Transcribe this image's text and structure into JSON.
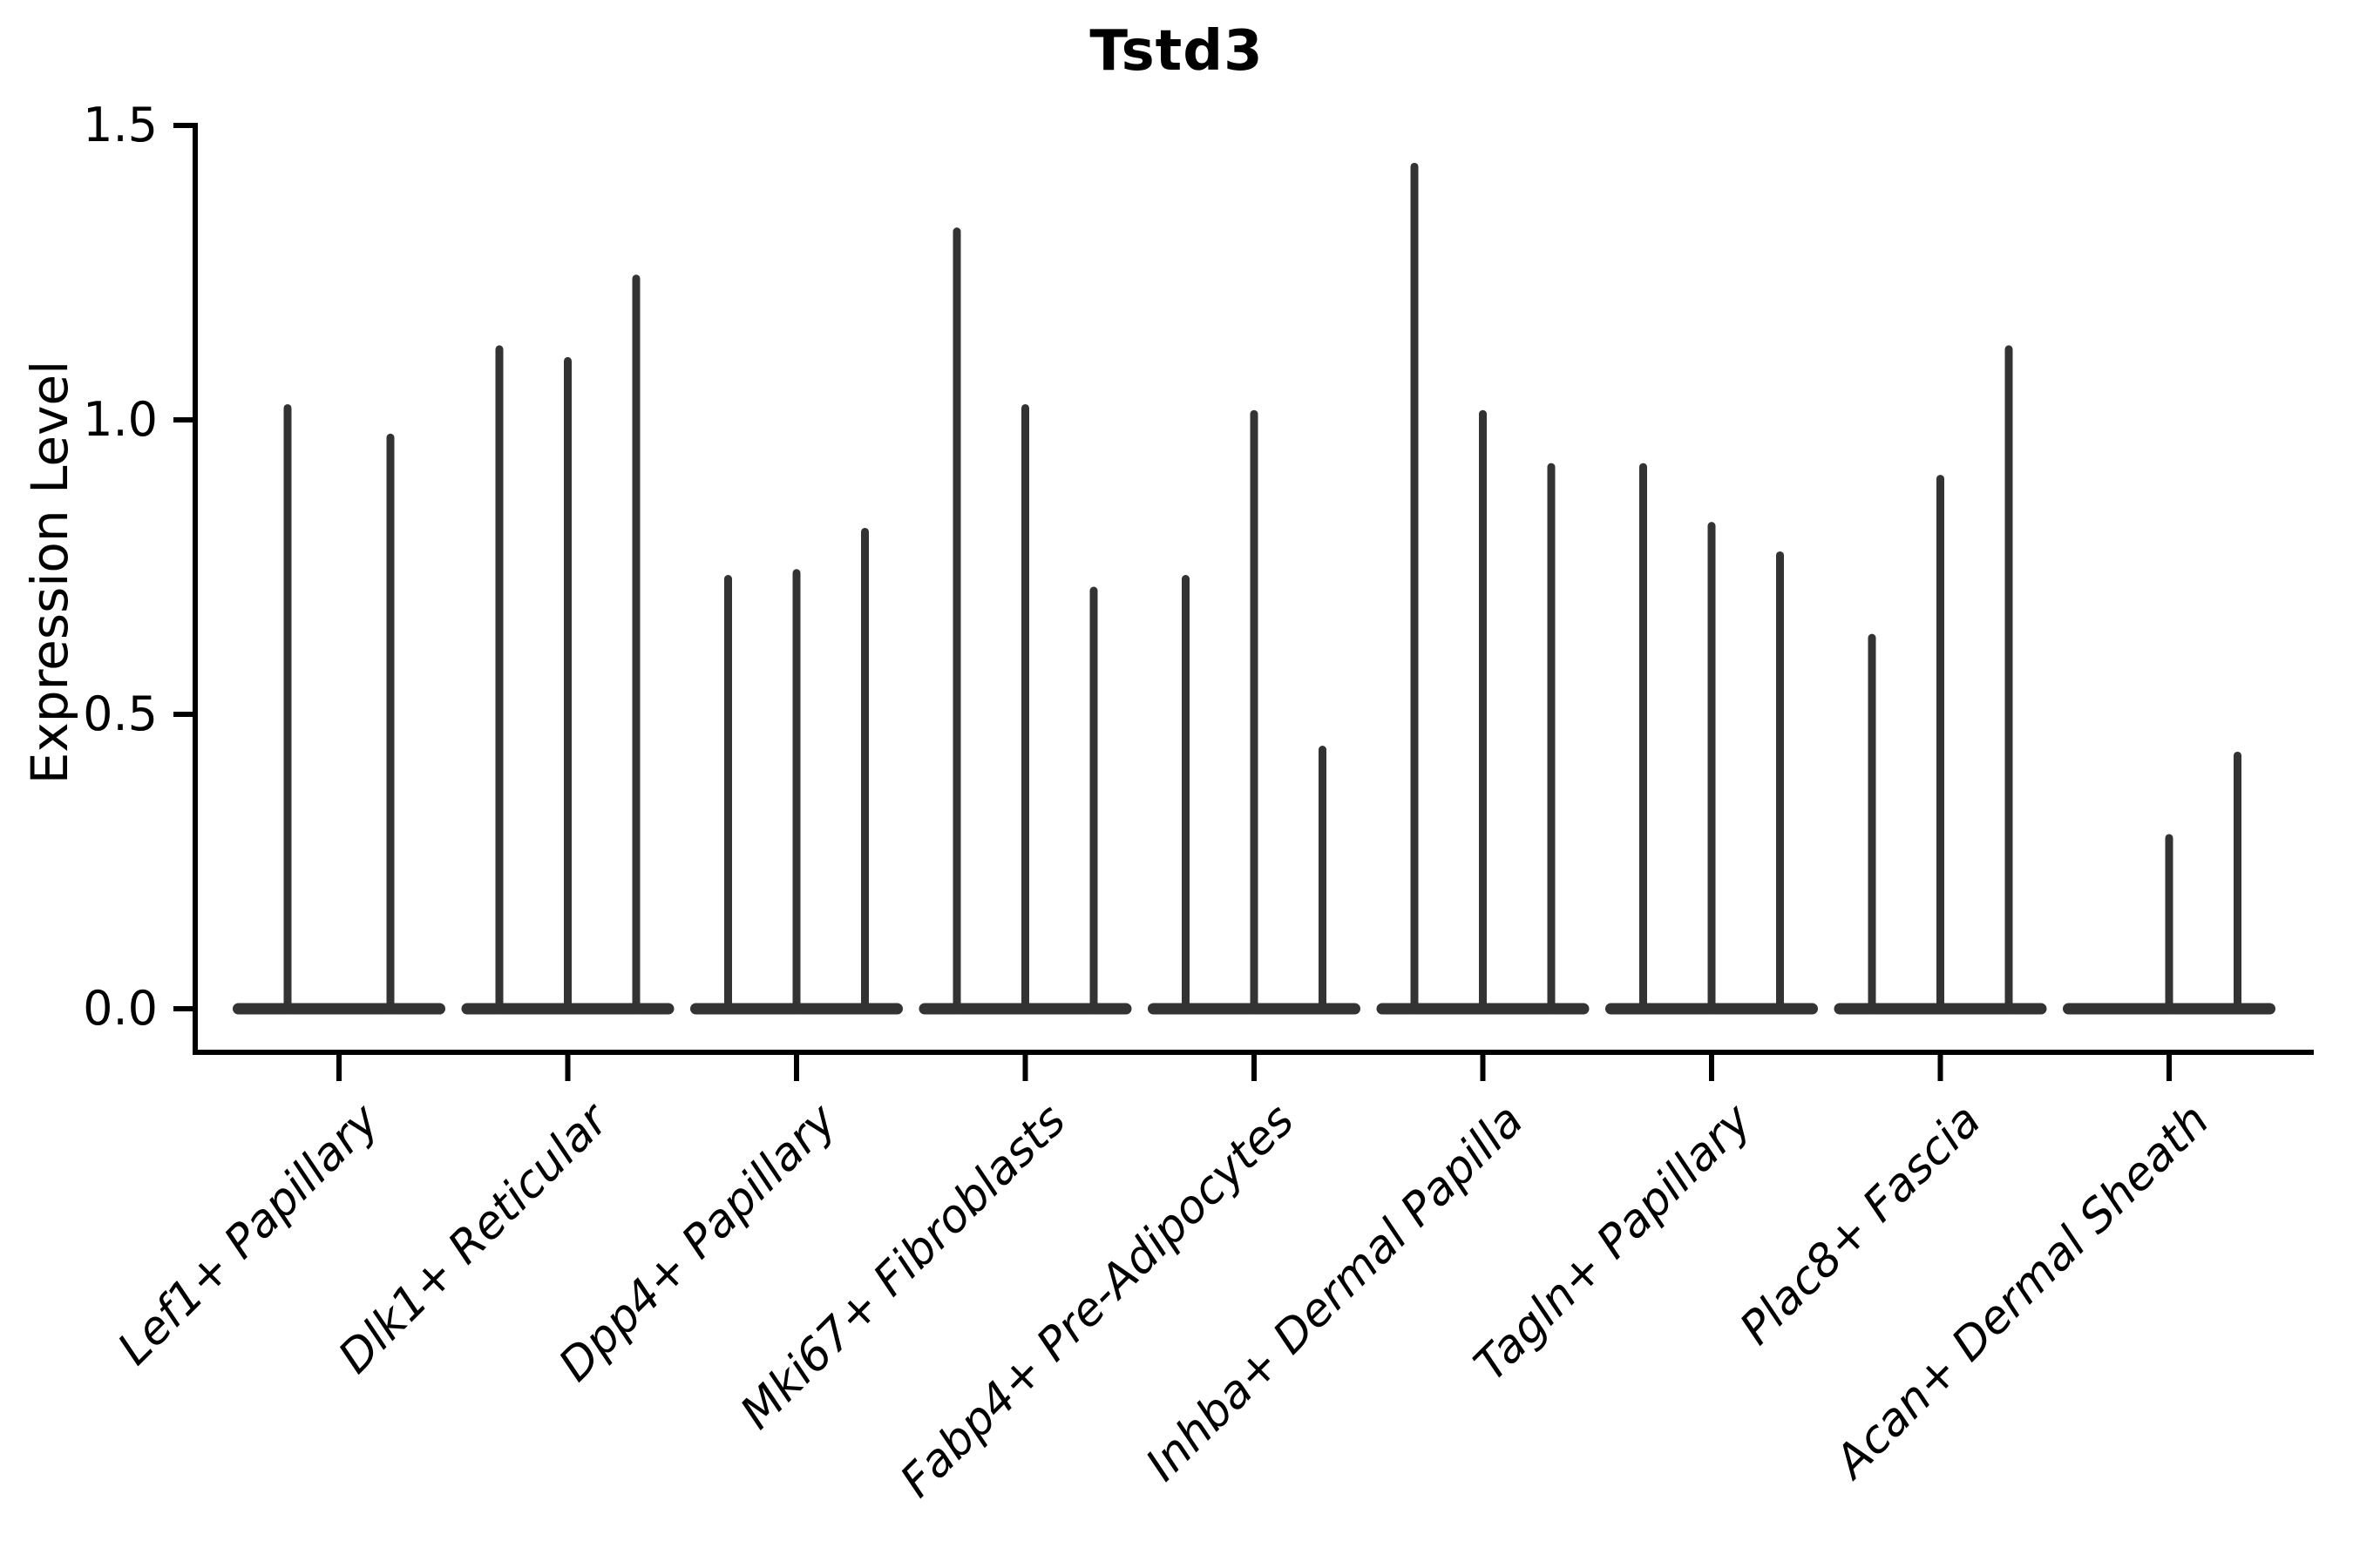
{
  "chart_data": {
    "type": "violin",
    "title": "Tstd3",
    "ylabel": "Expression Level",
    "xlabel": "",
    "ylim": [
      0.0,
      1.5
    ],
    "yticks": {
      "values": [
        1.5,
        1.0,
        0.5,
        0.0
      ],
      "labels": [
        "1.5",
        "1.0",
        "0.5",
        "0.0"
      ]
    },
    "grid": false,
    "legend": "none",
    "violin_color": "#333333",
    "axis_color": "#000000",
    "categories": [
      "Lef1+ Papillary",
      "Dlk1+ Reticular",
      "Dpp4+ Papillary",
      "Mki67+ Fibroblasts",
      "Fabp4+ Pre-Adipocytes",
      "Inhba+ Dermal Papilla",
      "Tagln+ Papillary",
      "Plac8+ Fascia",
      "Acan+ Dermal Sheath"
    ],
    "groups": [
      {
        "category": "Lef1+ Papillary",
        "violin_max_values": [
          1.02,
          0.97
        ]
      },
      {
        "category": "Dlk1+ Reticular",
        "violin_max_values": [
          1.12,
          1.1,
          1.24
        ]
      },
      {
        "category": "Dpp4+ Papillary",
        "violin_max_values": [
          0.73,
          0.74,
          0.81
        ]
      },
      {
        "category": "Mki67+ Fibroblasts",
        "violin_max_values": [
          1.32,
          1.02,
          0.71
        ]
      },
      {
        "category": "Fabp4+ Pre-Adipocytes",
        "violin_max_values": [
          0.73,
          1.01,
          0.44
        ]
      },
      {
        "category": "Inhba+ Dermal Papilla",
        "violin_max_values": [
          1.43,
          1.01,
          0.92
        ]
      },
      {
        "category": "Tagln+ Papillary",
        "violin_max_values": [
          0.92,
          0.82,
          0.77
        ]
      },
      {
        "category": "Plac8+ Fascia",
        "violin_max_values": [
          0.63,
          0.9,
          1.12
        ]
      },
      {
        "category": "Acan+ Dermal Sheath",
        "violin_max_values": [
          0.0,
          0.29,
          0.43
        ]
      }
    ],
    "note": "Each category shows narrow violins collapsed at 0 expression with thin spikes reaching the listed maximum expression level; a 0.00 maximum renders as a flat base with no spike."
  }
}
